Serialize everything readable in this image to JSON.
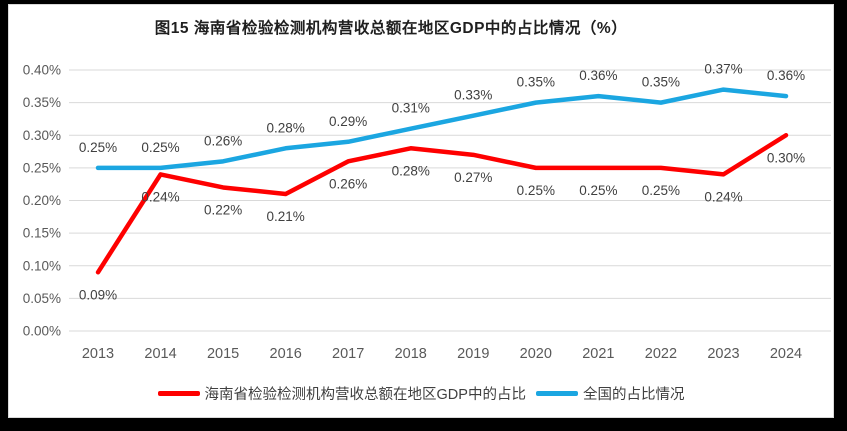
{
  "title": "图15 海南省检验检测机构营收总额在地区GDP中的占比情况（%）",
  "colors": {
    "hainan_line": "#fe0000",
    "national_line": "#1ba6e1",
    "gridline": "#d9d9d9",
    "axis_text": "#595959",
    "data_label_text": "#404040",
    "card_background": "#ffffff",
    "frame_background": "#000000"
  },
  "chart_data": {
    "type": "line",
    "title": "图15 海南省检验检测机构营收总额在地区GDP中的占比情况（%）",
    "xlabel": "",
    "ylabel": "",
    "categories": [
      "2013",
      "2014",
      "2015",
      "2016",
      "2017",
      "2018",
      "2019",
      "2020",
      "2021",
      "2022",
      "2023",
      "2024"
    ],
    "series": [
      {
        "name": "海南省检验检测机构营收总额在地区GDP中的占比",
        "color": "#fe0000",
        "values": [
          0.09,
          0.24,
          0.22,
          0.21,
          0.26,
          0.28,
          0.27,
          0.25,
          0.25,
          0.25,
          0.24,
          0.3
        ],
        "labels": [
          "0.09%",
          "0.24%",
          "0.22%",
          "0.21%",
          "0.26%",
          "0.28%",
          "0.27%",
          "0.25%",
          "0.25%",
          "0.25%",
          "0.24%",
          "0.30%"
        ],
        "label_position": "below"
      },
      {
        "name": "全国的占比情况",
        "color": "#1ba6e1",
        "values": [
          0.25,
          0.25,
          0.26,
          0.28,
          0.29,
          0.31,
          0.33,
          0.35,
          0.36,
          0.35,
          0.37,
          0.36
        ],
        "labels": [
          "0.25%",
          "0.25%",
          "0.26%",
          "0.28%",
          "0.29%",
          "0.31%",
          "0.33%",
          "0.35%",
          "0.36%",
          "0.35%",
          "0.37%",
          "0.36%"
        ],
        "label_position": "above"
      }
    ],
    "y_axis": {
      "min": 0,
      "max": 0.4,
      "ticks": [
        "0.00%",
        "0.05%",
        "0.10%",
        "0.15%",
        "0.20%",
        "0.25%",
        "0.30%",
        "0.35%",
        "0.40%"
      ]
    },
    "grid": true,
    "legend_position": "bottom"
  }
}
